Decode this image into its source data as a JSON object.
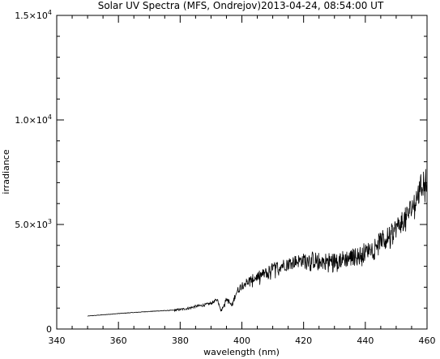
{
  "chart_data": {
    "type": "line",
    "title": "Solar UV Spectra (MFS, Ondrejov)2013-04-24, 08:54:00 UT",
    "xlabel": "wavelength (nm)",
    "ylabel": "irradiance",
    "xlim": [
      340,
      460
    ],
    "ylim": [
      0,
      15000
    ],
    "x_ticks": [
      340,
      360,
      380,
      400,
      420,
      440,
      460
    ],
    "x_tick_labels": [
      "340",
      "360",
      "380",
      "400",
      "420",
      "440",
      "460"
    ],
    "y_ticks": [
      {
        "value": 0,
        "base": "0",
        "exp": ""
      },
      {
        "value": 5000,
        "base": "5.0×10",
        "exp": "3"
      },
      {
        "value": 10000,
        "base": "1.0×10",
        "exp": "4"
      },
      {
        "value": 15000,
        "base": "1.5×10",
        "exp": "4"
      }
    ],
    "grid": false,
    "legend": "none",
    "line_color": "#000000",
    "series": [
      {
        "x": [
          350,
          355,
          360,
          365,
          370,
          375,
          378,
          380,
          383,
          385,
          388,
          390,
          392,
          393.4,
          395,
          396.8,
          398,
          400,
          403,
          405,
          408,
          410,
          413,
          415,
          418,
          420,
          423,
          425,
          428,
          430,
          433,
          435,
          438,
          440,
          443,
          445,
          448,
          450,
          453,
          455,
          457,
          459,
          460
        ],
        "y": [
          620,
          680,
          740,
          790,
          840,
          880,
          900,
          930,
          1000,
          1080,
          1150,
          1230,
          1400,
          900,
          1450,
          1100,
          1700,
          2100,
          2350,
          2500,
          2700,
          2900,
          3050,
          3150,
          3250,
          3300,
          3300,
          3250,
          3250,
          3250,
          3350,
          3400,
          3500,
          3700,
          4000,
          4250,
          4500,
          4850,
          5300,
          5800,
          6400,
          7100,
          7400
        ]
      }
    ]
  }
}
